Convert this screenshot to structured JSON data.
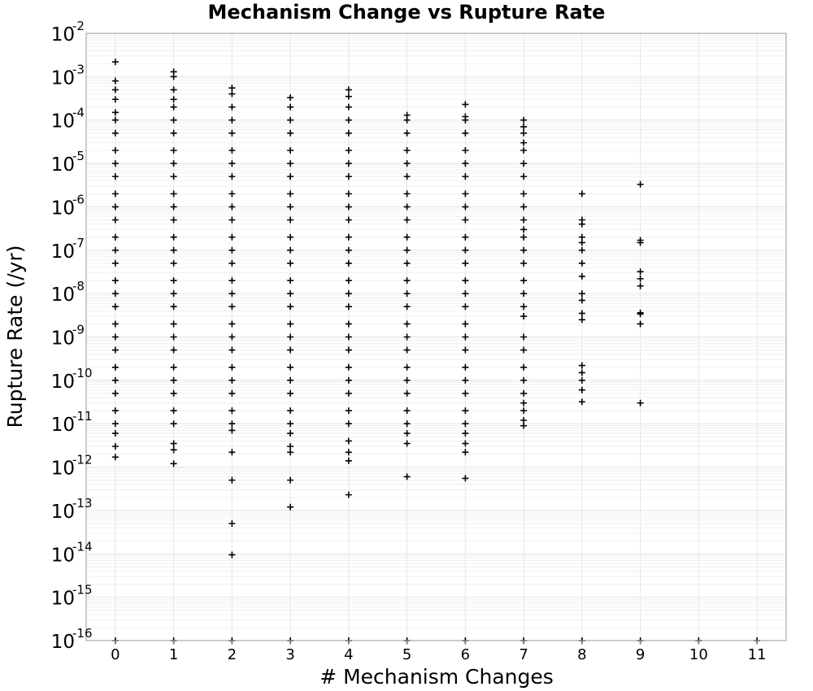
{
  "chart_data": {
    "type": "scatter",
    "title": "Mechanism Change vs Rupture Rate",
    "xlabel": "# Mechanism Changes",
    "ylabel": "Rupture Rate (/yr)",
    "x_ticks": [
      "0",
      "1",
      "2",
      "3",
      "4",
      "5",
      "6",
      "7",
      "8",
      "9",
      "10",
      "11"
    ],
    "xlim": [
      -0.5,
      11.5
    ],
    "y_scale": "log",
    "ylim": [
      1e-16,
      0.01
    ],
    "y_ticks": [
      {
        "base": "10",
        "exp": "-2"
      },
      {
        "base": "10",
        "exp": "-3"
      },
      {
        "base": "10",
        "exp": "-4"
      },
      {
        "base": "10",
        "exp": "-5"
      },
      {
        "base": "10",
        "exp": "-6"
      },
      {
        "base": "10",
        "exp": "-7"
      },
      {
        "base": "10",
        "exp": "-8"
      },
      {
        "base": "10",
        "exp": "-9"
      },
      {
        "base": "10",
        "exp": "-10"
      },
      {
        "base": "10",
        "exp": "-11"
      },
      {
        "base": "10",
        "exp": "-12"
      },
      {
        "base": "10",
        "exp": "-13"
      },
      {
        "base": "10",
        "exp": "-14"
      },
      {
        "base": "10",
        "exp": "-15"
      },
      {
        "base": "10",
        "exp": "-16"
      }
    ],
    "grid": true,
    "marker": "+",
    "marker_color": "#000000",
    "series": [
      {
        "x": 0,
        "y": [
          0.0022,
          0.0008,
          0.0005,
          0.0003,
          0.00015,
          0.0001,
          5e-05,
          2e-05,
          1e-05,
          5e-06,
          2e-06,
          1e-06,
          5e-07,
          2e-07,
          1e-07,
          5e-08,
          2e-08,
          1e-08,
          5e-09,
          2e-09,
          1e-09,
          5e-10,
          2e-10,
          1e-10,
          5e-11,
          2e-11,
          1e-11,
          6e-12,
          3e-12,
          1.7e-12,
          1e-16
        ]
      },
      {
        "x": 1,
        "y": [
          0.0013,
          0.001,
          0.0005,
          0.0003,
          0.0002,
          0.0001,
          5e-05,
          2e-05,
          1e-05,
          5e-06,
          2e-06,
          1e-06,
          5e-07,
          2e-07,
          1e-07,
          5e-08,
          2e-08,
          1e-08,
          5e-09,
          2e-09,
          1e-09,
          5e-10,
          2e-10,
          1e-10,
          5e-11,
          2e-11,
          1e-11,
          3.5e-12,
          2.5e-12,
          1.2e-12,
          1e-16
        ]
      },
      {
        "x": 2,
        "y": [
          0.00055,
          0.0004,
          0.0002,
          0.0001,
          5e-05,
          2e-05,
          1e-05,
          5e-06,
          2e-06,
          1e-06,
          5e-07,
          2e-07,
          1e-07,
          5e-08,
          2e-08,
          1e-08,
          5e-09,
          2e-09,
          1e-09,
          5e-10,
          2e-10,
          1e-10,
          5e-11,
          2e-11,
          1e-11,
          7e-12,
          2.2e-12,
          5e-13,
          5e-14,
          9.5e-15,
          1e-16
        ]
      },
      {
        "x": 3,
        "y": [
          0.00033,
          0.0002,
          0.0001,
          5e-05,
          2e-05,
          1e-05,
          5e-06,
          2e-06,
          1e-06,
          5e-07,
          2e-07,
          1e-07,
          5e-08,
          2e-08,
          1e-08,
          5e-09,
          2e-09,
          1e-09,
          5e-10,
          2e-10,
          1e-10,
          5e-11,
          2e-11,
          1e-11,
          6e-12,
          3e-12,
          2.2e-12,
          5e-13,
          1.2e-13,
          1e-16
        ]
      },
      {
        "x": 4,
        "y": [
          0.0005,
          0.00035,
          0.0002,
          0.0001,
          5e-05,
          2e-05,
          1e-05,
          5e-06,
          2e-06,
          1e-06,
          5e-07,
          2e-07,
          1e-07,
          5e-08,
          2e-08,
          1e-08,
          5e-09,
          2e-09,
          1e-09,
          5e-10,
          2e-10,
          1e-10,
          5e-11,
          2e-11,
          1e-11,
          4e-12,
          2.2e-12,
          1.4e-12,
          2.3e-13,
          1e-16
        ]
      },
      {
        "x": 5,
        "y": [
          0.00013,
          0.0001,
          5e-05,
          2e-05,
          1e-05,
          5e-06,
          2e-06,
          1e-06,
          5e-07,
          2e-07,
          1e-07,
          5e-08,
          2e-08,
          1e-08,
          5e-09,
          2e-09,
          1e-09,
          5e-10,
          2e-10,
          1e-10,
          5e-11,
          2e-11,
          1e-11,
          6e-12,
          3.5e-12,
          6e-13,
          1e-16
        ]
      },
      {
        "x": 6,
        "y": [
          0.00023,
          0.00012,
          0.0001,
          5e-05,
          2e-05,
          1e-05,
          5e-06,
          2e-06,
          1e-06,
          5e-07,
          2e-07,
          1e-07,
          5e-08,
          2e-08,
          1e-08,
          5e-09,
          2e-09,
          1e-09,
          5e-10,
          2e-10,
          1e-10,
          5e-11,
          2e-11,
          1e-11,
          6e-12,
          3.5e-12,
          2.2e-12,
          5.5e-13,
          1e-16
        ]
      },
      {
        "x": 7,
        "y": [
          0.0001,
          7e-05,
          5e-05,
          3e-05,
          2e-05,
          1e-05,
          5e-06,
          2e-06,
          1e-06,
          5e-07,
          3e-07,
          2e-07,
          1e-07,
          5e-08,
          2e-08,
          1e-08,
          5e-09,
          3e-09,
          1e-09,
          5e-10,
          2e-10,
          1e-10,
          5e-11,
          3e-11,
          2e-11,
          1.2e-11,
          9e-12,
          1e-16
        ]
      },
      {
        "x": 8,
        "y": [
          2e-06,
          5e-07,
          4e-07,
          2e-07,
          1.5e-07,
          1e-07,
          5e-08,
          2.5e-08,
          1e-08,
          7e-09,
          3.5e-09,
          2.5e-09,
          2.2e-10,
          1.5e-10,
          1e-10,
          6e-11,
          3.2e-11,
          1e-16
        ]
      },
      {
        "x": 9,
        "y": [
          3.3e-06,
          1.7e-07,
          1.5e-07,
          3.2e-08,
          2.2e-08,
          1.5e-08,
          3.6e-09,
          3.4e-09,
          2e-09,
          3e-11,
          1e-16
        ]
      },
      {
        "x": 10,
        "y": [
          1e-16
        ]
      },
      {
        "x": 11,
        "y": [
          1e-16
        ]
      }
    ]
  }
}
